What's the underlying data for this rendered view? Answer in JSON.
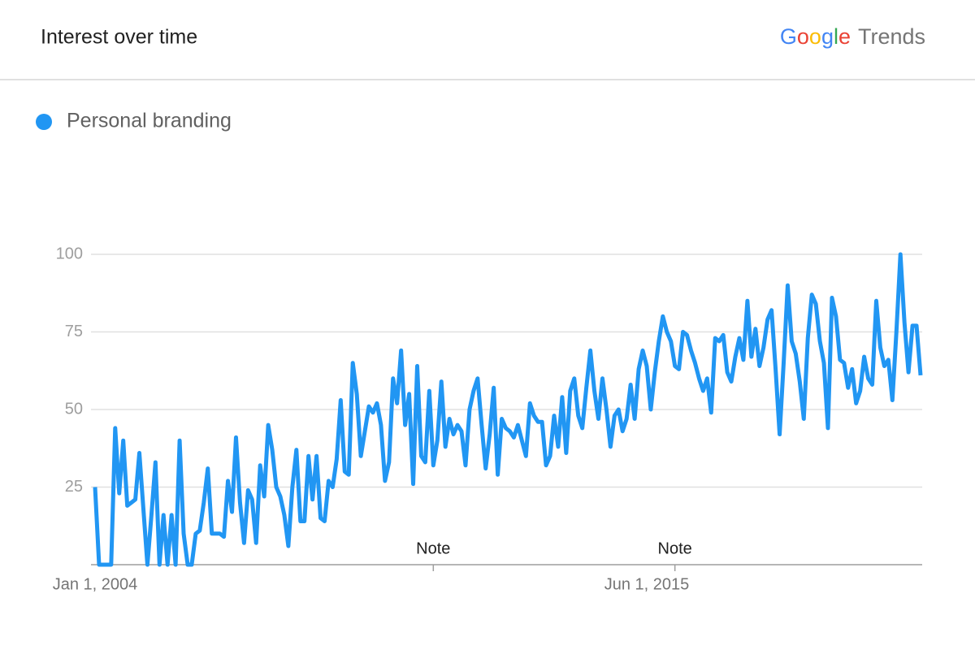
{
  "header": {
    "title": "Interest over time",
    "logo_google": "Google",
    "logo_trends": "Trends"
  },
  "chart_data": {
    "type": "line",
    "categories": [
      "Jan 1, 2004",
      null,
      null,
      null,
      null,
      null,
      null,
      null,
      null,
      null,
      null,
      null,
      null,
      null,
      null,
      null,
      null,
      null,
      null,
      null,
      null,
      null,
      null,
      null,
      null,
      null,
      null,
      null,
      null,
      null,
      null,
      null,
      null,
      null,
      null,
      null,
      null,
      null,
      null,
      null,
      null,
      null,
      null,
      null,
      null,
      null,
      null,
      null,
      null,
      null,
      null,
      null,
      null,
      null,
      null,
      null,
      null,
      null,
      null,
      null,
      null,
      null,
      null,
      null,
      null,
      null,
      null,
      null,
      null,
      null,
      null,
      null,
      null,
      null,
      null,
      null,
      null,
      null,
      null,
      null,
      null,
      null,
      null,
      null,
      null,
      null,
      null,
      null,
      null,
      null,
      null,
      null,
      null,
      null,
      null,
      null,
      null,
      null,
      null,
      null,
      null,
      null,
      null,
      null,
      null,
      null,
      null,
      null,
      null,
      null,
      null,
      null,
      null,
      null,
      null,
      null,
      null,
      null,
      null,
      null,
      null,
      null,
      null,
      null,
      null,
      null,
      null,
      null,
      null,
      null,
      null,
      null,
      null,
      null,
      null,
      null,
      null,
      "Jun 1, 2015",
      null,
      null,
      null,
      null,
      null,
      null,
      null,
      null,
      null,
      null,
      null,
      null,
      null,
      null,
      null,
      null,
      null,
      null,
      null,
      null,
      null,
      null,
      null,
      null,
      null,
      null,
      null,
      null,
      null,
      null,
      null,
      null,
      null,
      null,
      null,
      null,
      null,
      null,
      null,
      null,
      null,
      null,
      null,
      null,
      null,
      null,
      null,
      null,
      null,
      null,
      null,
      null,
      null,
      null,
      null,
      null,
      null,
      null,
      null,
      null,
      null,
      null,
      null,
      null,
      null,
      null,
      null,
      null
    ],
    "series": [
      {
        "name": "Personal branding",
        "color": "#2196f3",
        "values": [
          25,
          0,
          0,
          0,
          0,
          44,
          23,
          40,
          19,
          20,
          21,
          36,
          18,
          0,
          16,
          33,
          0,
          16,
          0,
          16,
          0,
          40,
          10,
          0,
          0,
          10,
          11,
          20,
          31,
          10,
          10,
          10,
          9,
          27,
          17,
          41,
          20,
          7,
          24,
          21,
          7,
          32,
          22,
          45,
          37,
          25,
          22,
          16,
          6,
          25,
          37,
          14,
          14,
          35,
          21,
          35,
          15,
          14,
          27,
          25,
          34,
          53,
          30,
          29,
          65,
          55,
          35,
          43,
          51,
          49,
          52,
          45,
          27,
          33,
          60,
          52,
          69,
          45,
          55,
          26,
          64,
          35,
          33,
          56,
          32,
          40,
          59,
          38,
          47,
          42,
          45,
          43,
          32,
          50,
          56,
          60,
          45,
          31,
          42,
          57,
          29,
          47,
          44,
          43,
          41,
          45,
          40,
          35,
          52,
          48,
          46,
          46,
          32,
          35,
          48,
          38,
          54,
          36,
          56,
          60,
          48,
          44,
          57,
          69,
          56,
          47,
          60,
          50,
          38,
          48,
          50,
          43,
          47,
          58,
          47,
          63,
          69,
          64,
          50,
          62,
          72,
          80,
          75,
          72,
          64,
          63,
          75,
          74,
          69,
          65,
          60,
          56,
          60,
          49,
          73,
          72,
          74,
          62,
          59,
          67,
          73,
          66,
          85,
          67,
          76,
          64,
          70,
          79,
          82,
          63,
          42,
          65,
          90,
          72,
          68,
          59,
          47,
          73,
          87,
          84,
          72,
          65,
          44,
          86,
          80,
          66,
          65,
          57,
          63,
          52,
          56,
          67,
          60,
          58,
          85,
          70,
          64,
          66,
          53,
          75,
          100,
          78,
          62,
          77,
          77,
          61
        ]
      }
    ],
    "annotations": [
      {
        "text": "Note",
        "index": 84
      },
      {
        "text": "Note",
        "index": 144
      }
    ],
    "ylim": [
      0,
      100
    ],
    "yticks": [
      25,
      50,
      75,
      100
    ],
    "grid": true
  }
}
